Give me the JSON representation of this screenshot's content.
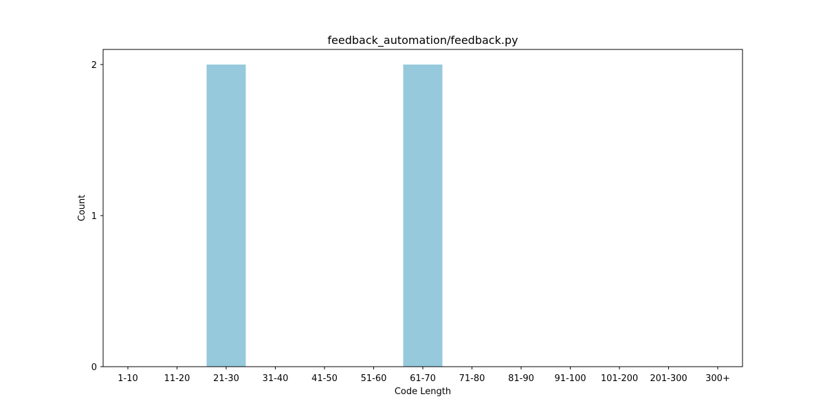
{
  "chart_data": {
    "type": "bar",
    "title": "feedback_automation/feedback.py",
    "xlabel": "Code Length",
    "ylabel": "Count",
    "categories": [
      "1-10",
      "11-20",
      "21-30",
      "31-40",
      "41-50",
      "51-60",
      "61-70",
      "71-80",
      "81-90",
      "91-100",
      "101-200",
      "201-300",
      "300+"
    ],
    "values": [
      0,
      0,
      2,
      0,
      0,
      0,
      2,
      0,
      0,
      0,
      0,
      0,
      0
    ],
    "ylim": [
      0,
      2.1
    ],
    "yticks": [
      0,
      1,
      2
    ],
    "grid": false,
    "bar_color": "#96c9dc"
  }
}
